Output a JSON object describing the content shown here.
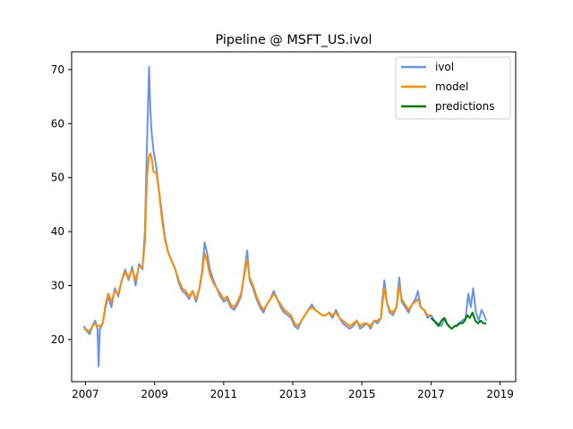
{
  "chart_data": {
    "type": "line",
    "title": "Pipeline @ MSFT_US.ivol",
    "xlabel": "",
    "ylabel": "",
    "xlim": [
      2006.6,
      2019.45
    ],
    "ylim": [
      12.2,
      73.3
    ],
    "x_ticks": [
      2007,
      2009,
      2011,
      2013,
      2015,
      2017,
      2019
    ],
    "y_ticks": [
      20,
      30,
      40,
      50,
      60,
      70
    ],
    "grid": false,
    "legend_position": "top-right",
    "series": [
      {
        "name": "ivol",
        "color": "#6495ED",
        "points": [
          [
            2006.95,
            22.5
          ],
          [
            2007.05,
            21.5
          ],
          [
            2007.12,
            21.0
          ],
          [
            2007.2,
            22.5
          ],
          [
            2007.28,
            23.5
          ],
          [
            2007.35,
            22.0
          ],
          [
            2007.38,
            15.0
          ],
          [
            2007.42,
            22.0
          ],
          [
            2007.5,
            23.0
          ],
          [
            2007.58,
            26.0
          ],
          [
            2007.66,
            28.0
          ],
          [
            2007.75,
            26.0
          ],
          [
            2007.85,
            29.5
          ],
          [
            2007.95,
            28.0
          ],
          [
            2008.05,
            31.0
          ],
          [
            2008.15,
            33.0
          ],
          [
            2008.25,
            31.0
          ],
          [
            2008.35,
            33.5
          ],
          [
            2008.45,
            30.0
          ],
          [
            2008.55,
            34.0
          ],
          [
            2008.65,
            33.0
          ],
          [
            2008.72,
            40.0
          ],
          [
            2008.78,
            56.0
          ],
          [
            2008.84,
            70.5
          ],
          [
            2008.88,
            62.0
          ],
          [
            2008.92,
            58.0
          ],
          [
            2008.97,
            55.0
          ],
          [
            2009.05,
            52.0
          ],
          [
            2009.12,
            48.0
          ],
          [
            2009.2,
            44.0
          ],
          [
            2009.3,
            39.0
          ],
          [
            2009.4,
            36.0
          ],
          [
            2009.5,
            34.5
          ],
          [
            2009.6,
            33.0
          ],
          [
            2009.7,
            30.5
          ],
          [
            2009.8,
            29.0
          ],
          [
            2009.9,
            28.5
          ],
          [
            2010.0,
            27.5
          ],
          [
            2010.1,
            29.0
          ],
          [
            2010.2,
            27.0
          ],
          [
            2010.3,
            29.5
          ],
          [
            2010.38,
            33.0
          ],
          [
            2010.45,
            38.0
          ],
          [
            2010.52,
            36.0
          ],
          [
            2010.6,
            33.0
          ],
          [
            2010.7,
            31.0
          ],
          [
            2010.8,
            29.5
          ],
          [
            2010.9,
            28.0
          ],
          [
            2011.0,
            27.0
          ],
          [
            2011.1,
            27.5
          ],
          [
            2011.2,
            26.0
          ],
          [
            2011.3,
            25.5
          ],
          [
            2011.4,
            26.5
          ],
          [
            2011.5,
            28.0
          ],
          [
            2011.6,
            32.5
          ],
          [
            2011.68,
            36.5
          ],
          [
            2011.75,
            31.0
          ],
          [
            2011.85,
            29.5
          ],
          [
            2011.95,
            27.5
          ],
          [
            2012.05,
            26.0
          ],
          [
            2012.15,
            25.0
          ],
          [
            2012.25,
            26.5
          ],
          [
            2012.35,
            27.5
          ],
          [
            2012.45,
            29.0
          ],
          [
            2012.55,
            27.5
          ],
          [
            2012.65,
            26.0
          ],
          [
            2012.75,
            25.0
          ],
          [
            2012.85,
            24.5
          ],
          [
            2012.95,
            24.0
          ],
          [
            2013.05,
            22.5
          ],
          [
            2013.15,
            22.0
          ],
          [
            2013.25,
            23.5
          ],
          [
            2013.35,
            24.5
          ],
          [
            2013.45,
            25.5
          ],
          [
            2013.55,
            26.5
          ],
          [
            2013.65,
            25.5
          ],
          [
            2013.75,
            25.0
          ],
          [
            2013.85,
            24.5
          ],
          [
            2013.95,
            24.5
          ],
          [
            2014.05,
            25.0
          ],
          [
            2014.15,
            24.0
          ],
          [
            2014.25,
            25.5
          ],
          [
            2014.35,
            24.0
          ],
          [
            2014.45,
            23.0
          ],
          [
            2014.55,
            22.5
          ],
          [
            2014.65,
            22.0
          ],
          [
            2014.75,
            22.5
          ],
          [
            2014.85,
            23.5
          ],
          [
            2014.95,
            22.0
          ],
          [
            2015.05,
            22.5
          ],
          [
            2015.15,
            23.0
          ],
          [
            2015.25,
            22.0
          ],
          [
            2015.35,
            23.5
          ],
          [
            2015.45,
            23.0
          ],
          [
            2015.55,
            24.0
          ],
          [
            2015.6,
            28.0
          ],
          [
            2015.65,
            31.0
          ],
          [
            2015.72,
            27.0
          ],
          [
            2015.8,
            25.0
          ],
          [
            2015.9,
            24.5
          ],
          [
            2016.0,
            26.0
          ],
          [
            2016.08,
            31.5
          ],
          [
            2016.15,
            27.0
          ],
          [
            2016.25,
            26.0
          ],
          [
            2016.35,
            25.0
          ],
          [
            2016.45,
            26.5
          ],
          [
            2016.55,
            27.5
          ],
          [
            2016.62,
            29.0
          ],
          [
            2016.7,
            26.0
          ],
          [
            2016.8,
            25.5
          ],
          [
            2016.9,
            24.0
          ],
          [
            2017.0,
            24.5
          ],
          [
            2017.1,
            23.5
          ],
          [
            2017.2,
            23.0
          ],
          [
            2017.3,
            22.5
          ],
          [
            2017.4,
            24.0
          ],
          [
            2017.5,
            22.5
          ],
          [
            2017.6,
            22.0
          ],
          [
            2017.7,
            22.5
          ],
          [
            2017.8,
            23.0
          ],
          [
            2017.9,
            23.5
          ],
          [
            2018.0,
            24.0
          ],
          [
            2018.08,
            28.5
          ],
          [
            2018.15,
            26.0
          ],
          [
            2018.22,
            29.5
          ],
          [
            2018.3,
            25.0
          ],
          [
            2018.38,
            23.5
          ],
          [
            2018.46,
            25.5
          ],
          [
            2018.54,
            24.5
          ],
          [
            2018.6,
            23.5
          ]
        ]
      },
      {
        "name": "model",
        "color": "#FF8C00",
        "points": [
          [
            2006.95,
            22.0
          ],
          [
            2007.05,
            21.8
          ],
          [
            2007.12,
            21.5
          ],
          [
            2007.2,
            22.5
          ],
          [
            2007.28,
            23.0
          ],
          [
            2007.35,
            22.5
          ],
          [
            2007.42,
            22.5
          ],
          [
            2007.5,
            23.0
          ],
          [
            2007.58,
            26.5
          ],
          [
            2007.66,
            28.5
          ],
          [
            2007.75,
            27.0
          ],
          [
            2007.85,
            29.0
          ],
          [
            2007.95,
            28.5
          ],
          [
            2008.05,
            31.0
          ],
          [
            2008.15,
            32.5
          ],
          [
            2008.25,
            31.5
          ],
          [
            2008.35,
            33.0
          ],
          [
            2008.45,
            31.0
          ],
          [
            2008.55,
            33.5
          ],
          [
            2008.65,
            33.5
          ],
          [
            2008.72,
            38.0
          ],
          [
            2008.78,
            50.0
          ],
          [
            2008.84,
            54.0
          ],
          [
            2008.88,
            54.5
          ],
          [
            2008.92,
            53.5
          ],
          [
            2008.97,
            51.0
          ],
          [
            2009.05,
            51.0
          ],
          [
            2009.12,
            48.0
          ],
          [
            2009.2,
            43.0
          ],
          [
            2009.3,
            38.5
          ],
          [
            2009.4,
            36.0
          ],
          [
            2009.5,
            34.5
          ],
          [
            2009.6,
            33.0
          ],
          [
            2009.7,
            31.0
          ],
          [
            2009.8,
            29.5
          ],
          [
            2009.9,
            29.0
          ],
          [
            2010.0,
            28.0
          ],
          [
            2010.1,
            29.0
          ],
          [
            2010.2,
            27.5
          ],
          [
            2010.3,
            29.5
          ],
          [
            2010.38,
            32.5
          ],
          [
            2010.45,
            36.0
          ],
          [
            2010.52,
            34.5
          ],
          [
            2010.6,
            32.0
          ],
          [
            2010.7,
            30.5
          ],
          [
            2010.8,
            29.5
          ],
          [
            2010.9,
            28.5
          ],
          [
            2011.0,
            27.5
          ],
          [
            2011.1,
            28.0
          ],
          [
            2011.2,
            26.5
          ],
          [
            2011.3,
            26.0
          ],
          [
            2011.4,
            27.0
          ],
          [
            2011.5,
            28.5
          ],
          [
            2011.6,
            32.0
          ],
          [
            2011.68,
            35.0
          ],
          [
            2011.75,
            31.5
          ],
          [
            2011.85,
            30.0
          ],
          [
            2011.95,
            28.0
          ],
          [
            2012.05,
            26.5
          ],
          [
            2012.15,
            25.5
          ],
          [
            2012.25,
            26.5
          ],
          [
            2012.35,
            27.5
          ],
          [
            2012.45,
            28.5
          ],
          [
            2012.55,
            27.5
          ],
          [
            2012.65,
            26.5
          ],
          [
            2012.75,
            25.5
          ],
          [
            2012.85,
            25.0
          ],
          [
            2012.95,
            24.5
          ],
          [
            2013.05,
            23.0
          ],
          [
            2013.15,
            22.5
          ],
          [
            2013.25,
            23.5
          ],
          [
            2013.35,
            24.5
          ],
          [
            2013.45,
            25.5
          ],
          [
            2013.55,
            26.0
          ],
          [
            2013.65,
            25.5
          ],
          [
            2013.75,
            25.0
          ],
          [
            2013.85,
            24.5
          ],
          [
            2013.95,
            24.5
          ],
          [
            2014.05,
            25.0
          ],
          [
            2014.15,
            24.5
          ],
          [
            2014.25,
            25.0
          ],
          [
            2014.35,
            24.0
          ],
          [
            2014.45,
            23.5
          ],
          [
            2014.55,
            23.0
          ],
          [
            2014.65,
            22.5
          ],
          [
            2014.75,
            23.0
          ],
          [
            2014.85,
            23.5
          ],
          [
            2014.95,
            22.5
          ],
          [
            2015.05,
            23.0
          ],
          [
            2015.15,
            23.0
          ],
          [
            2015.25,
            22.5
          ],
          [
            2015.35,
            23.5
          ],
          [
            2015.45,
            23.5
          ],
          [
            2015.55,
            24.0
          ],
          [
            2015.6,
            27.0
          ],
          [
            2015.65,
            29.5
          ],
          [
            2015.72,
            27.0
          ],
          [
            2015.8,
            25.5
          ],
          [
            2015.9,
            25.0
          ],
          [
            2016.0,
            26.0
          ],
          [
            2016.08,
            30.0
          ],
          [
            2016.15,
            27.5
          ],
          [
            2016.25,
            26.5
          ],
          [
            2016.35,
            25.5
          ],
          [
            2016.45,
            26.5
          ],
          [
            2016.55,
            27.0
          ],
          [
            2016.62,
            27.5
          ],
          [
            2016.7,
            26.0
          ],
          [
            2016.8,
            25.5
          ],
          [
            2016.9,
            24.5
          ],
          [
            2017.0,
            24.5
          ]
        ]
      },
      {
        "name": "predictions",
        "color": "#008000",
        "points": [
          [
            2017.0,
            24.0
          ],
          [
            2017.08,
            23.5
          ],
          [
            2017.15,
            23.0
          ],
          [
            2017.22,
            22.5
          ],
          [
            2017.3,
            23.5
          ],
          [
            2017.38,
            24.0
          ],
          [
            2017.45,
            23.0
          ],
          [
            2017.52,
            22.5
          ],
          [
            2017.6,
            22.0
          ],
          [
            2017.68,
            22.5
          ],
          [
            2017.75,
            22.5
          ],
          [
            2017.82,
            23.0
          ],
          [
            2017.9,
            23.0
          ],
          [
            2017.98,
            23.5
          ],
          [
            2018.05,
            24.5
          ],
          [
            2018.12,
            24.0
          ],
          [
            2018.2,
            25.0
          ],
          [
            2018.28,
            23.5
          ],
          [
            2018.36,
            23.0
          ],
          [
            2018.44,
            23.5
          ],
          [
            2018.52,
            23.0
          ],
          [
            2018.6,
            23.0
          ]
        ]
      }
    ]
  }
}
